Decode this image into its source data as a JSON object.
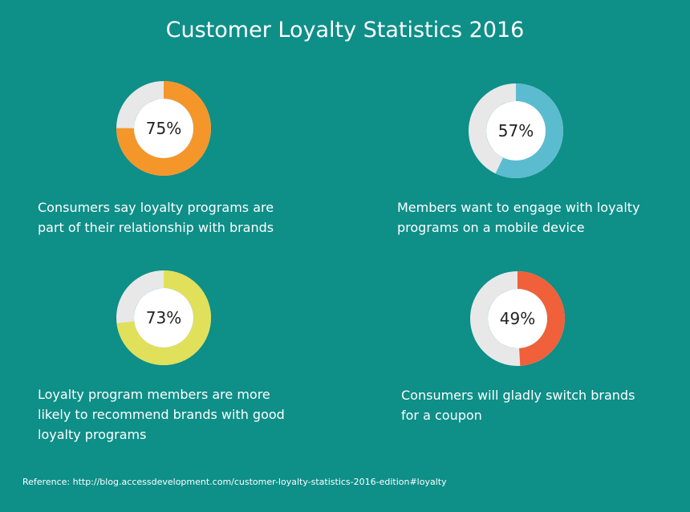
{
  "chart_data": {
    "type": "pie",
    "title": "Customer Loyalty Statistics 2016",
    "items": [
      {
        "value": 75,
        "label": "75%",
        "text": "Consumers say loyalty programs are part of their relationship with brands",
        "color": "#f5962a"
      },
      {
        "value": 57,
        "label": "57%",
        "text": "Members want to engage with loyalty programs on a mobile device",
        "color": "#5bbcd0"
      },
      {
        "value": 73,
        "label": "73%",
        "text": "Loyalty program members are more likely to recommend brands with good loyalty programs",
        "color": "#e0e05a"
      },
      {
        "value": 49,
        "label": "49%",
        "text": "Consumers will gladly switch brands for a coupon",
        "color": "#f0603a"
      }
    ],
    "track_color": "#e8e8e8"
  },
  "reference": "Reference: http://blog.accessdevelopment.com/customer-loyalty-statistics-2016-edition#loyalty"
}
